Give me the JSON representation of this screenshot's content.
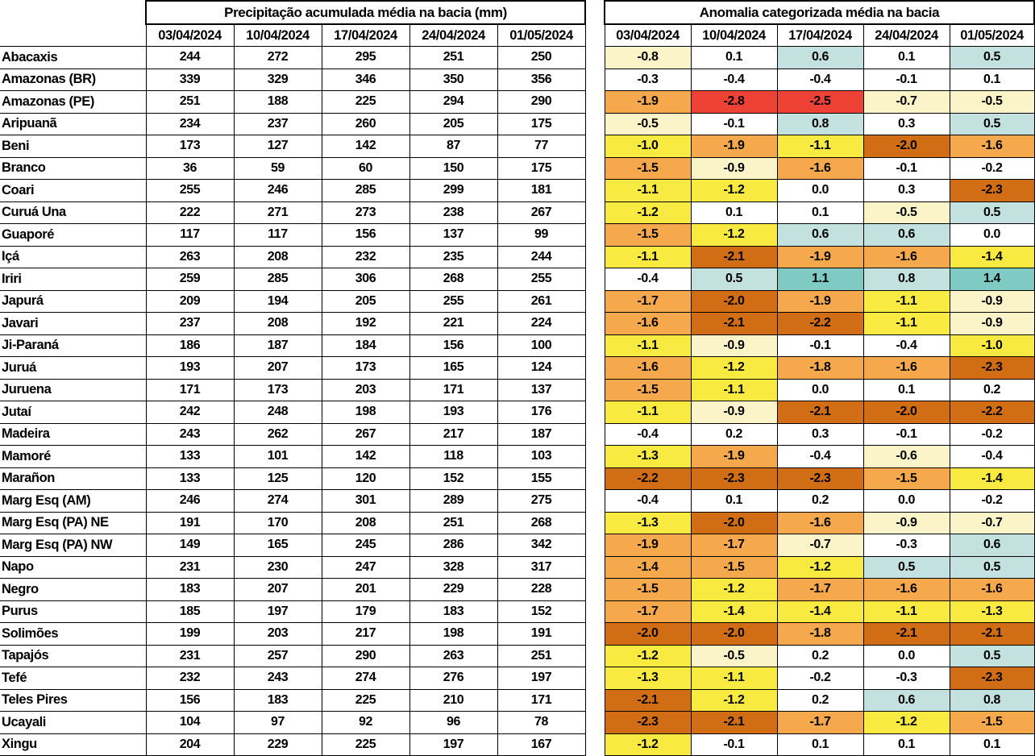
{
  "chart_data": {
    "type": "table",
    "left_table": {
      "title": "Precipitação acumulada média na bacia (mm)",
      "dates": [
        "03/04/2024",
        "10/04/2024",
        "17/04/2024",
        "24/04/2024",
        "01/05/2024"
      ]
    },
    "right_table": {
      "title": "Anomalia categorizada média na bacia",
      "dates": [
        "03/04/2024",
        "10/04/2024",
        "17/04/2024",
        "24/04/2024",
        "01/05/2024"
      ]
    },
    "palette": {
      "white": "#FFFFFF",
      "cream": "#FBF4C9",
      "yellow": "#F9EA41",
      "orange": "#F6A94C",
      "dark_orange": "#D16D14",
      "red": "#EE4237",
      "light_blue": "#C2E1DF",
      "teal": "#7FCBC4"
    },
    "rows": [
      {
        "basin": "Abacaxis",
        "precip": [
          244,
          272,
          295,
          251,
          250
        ],
        "anomaly": [
          "-0.8",
          "0.1",
          "0.6",
          "0.1",
          "0.5"
        ],
        "anomaly_colors": [
          "cream",
          "white",
          "light_blue",
          "white",
          "light_blue"
        ]
      },
      {
        "basin": "Amazonas (BR)",
        "precip": [
          339,
          329,
          346,
          350,
          356
        ],
        "anomaly": [
          "-0.3",
          "-0.4",
          "-0.4",
          "-0.1",
          "0.1"
        ],
        "anomaly_colors": [
          "white",
          "white",
          "white",
          "white",
          "white"
        ]
      },
      {
        "basin": "Amazonas (PE)",
        "precip": [
          251,
          188,
          225,
          294,
          290
        ],
        "anomaly": [
          "-1.9",
          "-2.8",
          "-2.5",
          "-0.7",
          "-0.5"
        ],
        "anomaly_colors": [
          "orange",
          "red",
          "red",
          "cream",
          "cream"
        ]
      },
      {
        "basin": "Aripuanã",
        "precip": [
          234,
          237,
          260,
          205,
          175
        ],
        "anomaly": [
          "-0.5",
          "-0.1",
          "0.8",
          "0.3",
          "0.5"
        ],
        "anomaly_colors": [
          "cream",
          "white",
          "light_blue",
          "white",
          "light_blue"
        ]
      },
      {
        "basin": "Beni",
        "precip": [
          173,
          127,
          142,
          87,
          77
        ],
        "anomaly": [
          "-1.0",
          "-1.9",
          "-1.1",
          "-2.0",
          "-1.6"
        ],
        "anomaly_colors": [
          "yellow",
          "orange",
          "yellow",
          "dark_orange",
          "orange"
        ]
      },
      {
        "basin": "Branco",
        "precip": [
          36,
          59,
          60,
          150,
          175
        ],
        "anomaly": [
          "-1.5",
          "-0.9",
          "-1.6",
          "-0.1",
          "-0.2"
        ],
        "anomaly_colors": [
          "orange",
          "cream",
          "orange",
          "white",
          "white"
        ]
      },
      {
        "basin": "Coari",
        "precip": [
          255,
          246,
          285,
          299,
          181
        ],
        "anomaly": [
          "-1.1",
          "-1.2",
          "0.0",
          "0.3",
          "-2.3"
        ],
        "anomaly_colors": [
          "yellow",
          "yellow",
          "white",
          "white",
          "dark_orange"
        ]
      },
      {
        "basin": "Curuá Una",
        "precip": [
          222,
          271,
          273,
          238,
          267
        ],
        "anomaly": [
          "-1.2",
          "0.1",
          "0.1",
          "-0.5",
          "0.5"
        ],
        "anomaly_colors": [
          "yellow",
          "white",
          "white",
          "cream",
          "light_blue"
        ]
      },
      {
        "basin": "Guaporé",
        "precip": [
          117,
          117,
          156,
          137,
          99
        ],
        "anomaly": [
          "-1.5",
          "-1.2",
          "0.6",
          "0.6",
          "0.0"
        ],
        "anomaly_colors": [
          "orange",
          "yellow",
          "light_blue",
          "light_blue",
          "white"
        ]
      },
      {
        "basin": "Içá",
        "precip": [
          263,
          208,
          232,
          235,
          244
        ],
        "anomaly": [
          "-1.1",
          "-2.1",
          "-1.9",
          "-1.6",
          "-1.4"
        ],
        "anomaly_colors": [
          "yellow",
          "dark_orange",
          "orange",
          "orange",
          "yellow"
        ]
      },
      {
        "basin": "Iriri",
        "precip": [
          259,
          285,
          306,
          268,
          255
        ],
        "anomaly": [
          "-0.4",
          "0.5",
          "1.1",
          "0.8",
          "1.4"
        ],
        "anomaly_colors": [
          "white",
          "light_blue",
          "teal",
          "light_blue",
          "teal"
        ]
      },
      {
        "basin": "Japurá",
        "precip": [
          209,
          194,
          205,
          255,
          261
        ],
        "anomaly": [
          "-1.7",
          "-2.0",
          "-1.9",
          "-1.1",
          "-0.9"
        ],
        "anomaly_colors": [
          "orange",
          "dark_orange",
          "orange",
          "yellow",
          "cream"
        ]
      },
      {
        "basin": "Javari",
        "precip": [
          237,
          208,
          192,
          221,
          224
        ],
        "anomaly": [
          "-1.6",
          "-2.1",
          "-2.2",
          "-1.1",
          "-0.9"
        ],
        "anomaly_colors": [
          "orange",
          "dark_orange",
          "dark_orange",
          "yellow",
          "cream"
        ]
      },
      {
        "basin": "Ji-Paraná",
        "precip": [
          186,
          187,
          184,
          156,
          100
        ],
        "anomaly": [
          "-1.1",
          "-0.9",
          "-0.1",
          "-0.4",
          "-1.0"
        ],
        "anomaly_colors": [
          "yellow",
          "cream",
          "white",
          "white",
          "yellow"
        ]
      },
      {
        "basin": "Juruá",
        "precip": [
          193,
          207,
          173,
          165,
          124
        ],
        "anomaly": [
          "-1.6",
          "-1.2",
          "-1.8",
          "-1.6",
          "-2.3"
        ],
        "anomaly_colors": [
          "orange",
          "yellow",
          "orange",
          "orange",
          "dark_orange"
        ]
      },
      {
        "basin": "Juruena",
        "precip": [
          171,
          173,
          203,
          171,
          137
        ],
        "anomaly": [
          "-1.5",
          "-1.1",
          "0.0",
          "0.1",
          "0.2"
        ],
        "anomaly_colors": [
          "orange",
          "yellow",
          "white",
          "white",
          "white"
        ]
      },
      {
        "basin": "Jutaí",
        "precip": [
          242,
          248,
          198,
          193,
          176
        ],
        "anomaly": [
          "-1.1",
          "-0.9",
          "-2.1",
          "-2.0",
          "-2.2"
        ],
        "anomaly_colors": [
          "yellow",
          "cream",
          "dark_orange",
          "dark_orange",
          "dark_orange"
        ]
      },
      {
        "basin": "Madeira",
        "precip": [
          243,
          262,
          267,
          217,
          187
        ],
        "anomaly": [
          "-0.4",
          "0.2",
          "0.3",
          "-0.1",
          "-0.2"
        ],
        "anomaly_colors": [
          "white",
          "white",
          "white",
          "white",
          "white"
        ]
      },
      {
        "basin": "Mamoré",
        "precip": [
          133,
          101,
          142,
          118,
          103
        ],
        "anomaly": [
          "-1.3",
          "-1.9",
          "-0.4",
          "-0.6",
          "-0.4"
        ],
        "anomaly_colors": [
          "yellow",
          "orange",
          "white",
          "cream",
          "white"
        ]
      },
      {
        "basin": "Marañon",
        "precip": [
          133,
          125,
          120,
          152,
          155
        ],
        "anomaly": [
          "-2.2",
          "-2.3",
          "-2.3",
          "-1.5",
          "-1.4"
        ],
        "anomaly_colors": [
          "dark_orange",
          "dark_orange",
          "dark_orange",
          "orange",
          "yellow"
        ]
      },
      {
        "basin": "Marg Esq (AM)",
        "precip": [
          246,
          274,
          301,
          289,
          275
        ],
        "anomaly": [
          "-0.4",
          "0.1",
          "0.2",
          "0.0",
          "-0.2"
        ],
        "anomaly_colors": [
          "white",
          "white",
          "white",
          "white",
          "white"
        ]
      },
      {
        "basin": "Marg Esq (PA) NE",
        "precip": [
          191,
          170,
          208,
          251,
          268
        ],
        "anomaly": [
          "-1.3",
          "-2.0",
          "-1.6",
          "-0.9",
          "-0.7"
        ],
        "anomaly_colors": [
          "yellow",
          "dark_orange",
          "orange",
          "cream",
          "cream"
        ]
      },
      {
        "basin": "Marg Esq (PA) NW",
        "precip": [
          149,
          165,
          245,
          286,
          342
        ],
        "anomaly": [
          "-1.9",
          "-1.7",
          "-0.7",
          "-0.3",
          "0.6"
        ],
        "anomaly_colors": [
          "orange",
          "orange",
          "cream",
          "white",
          "light_blue"
        ]
      },
      {
        "basin": "Napo",
        "precip": [
          231,
          230,
          247,
          328,
          317
        ],
        "anomaly": [
          "-1.4",
          "-1.5",
          "-1.2",
          "0.5",
          "0.5"
        ],
        "anomaly_colors": [
          "orange",
          "orange",
          "yellow",
          "light_blue",
          "light_blue"
        ]
      },
      {
        "basin": "Negro",
        "precip": [
          183,
          207,
          201,
          229,
          228
        ],
        "anomaly": [
          "-1.5",
          "-1.2",
          "-1.7",
          "-1.6",
          "-1.6"
        ],
        "anomaly_colors": [
          "orange",
          "yellow",
          "orange",
          "orange",
          "orange"
        ]
      },
      {
        "basin": "Purus",
        "precip": [
          185,
          197,
          179,
          183,
          152
        ],
        "anomaly": [
          "-1.7",
          "-1.4",
          "-1.4",
          "-1.1",
          "-1.3"
        ],
        "anomaly_colors": [
          "orange",
          "yellow",
          "yellow",
          "yellow",
          "yellow"
        ]
      },
      {
        "basin": "Solimões",
        "precip": [
          199,
          203,
          217,
          198,
          191
        ],
        "anomaly": [
          "-2.0",
          "-2.0",
          "-1.8",
          "-2.1",
          "-2.1"
        ],
        "anomaly_colors": [
          "dark_orange",
          "dark_orange",
          "orange",
          "dark_orange",
          "dark_orange"
        ]
      },
      {
        "basin": "Tapajós",
        "precip": [
          231,
          257,
          290,
          263,
          251
        ],
        "anomaly": [
          "-1.2",
          "-0.5",
          "0.2",
          "0.0",
          "0.5"
        ],
        "anomaly_colors": [
          "yellow",
          "cream",
          "white",
          "white",
          "light_blue"
        ]
      },
      {
        "basin": "Tefé",
        "precip": [
          232,
          243,
          274,
          276,
          197
        ],
        "anomaly": [
          "-1.3",
          "-1.1",
          "-0.2",
          "-0.3",
          "-2.3"
        ],
        "anomaly_colors": [
          "yellow",
          "yellow",
          "white",
          "white",
          "dark_orange"
        ]
      },
      {
        "basin": "Teles Pires",
        "precip": [
          156,
          183,
          225,
          210,
          171
        ],
        "anomaly": [
          "-2.1",
          "-1.2",
          "0.2",
          "0.6",
          "0.8"
        ],
        "anomaly_colors": [
          "dark_orange",
          "yellow",
          "white",
          "light_blue",
          "light_blue"
        ]
      },
      {
        "basin": "Ucayali",
        "precip": [
          104,
          97,
          92,
          96,
          78
        ],
        "anomaly": [
          "-2.3",
          "-2.1",
          "-1.7",
          "-1.2",
          "-1.5"
        ],
        "anomaly_colors": [
          "dark_orange",
          "dark_orange",
          "orange",
          "yellow",
          "orange"
        ]
      },
      {
        "basin": "Xingu",
        "precip": [
          204,
          229,
          225,
          197,
          167
        ],
        "anomaly": [
          "-1.2",
          "-0.1",
          "0.1",
          "0.1",
          "0.1"
        ],
        "anomaly_colors": [
          "yellow",
          "white",
          "white",
          "white",
          "white"
        ]
      }
    ]
  }
}
